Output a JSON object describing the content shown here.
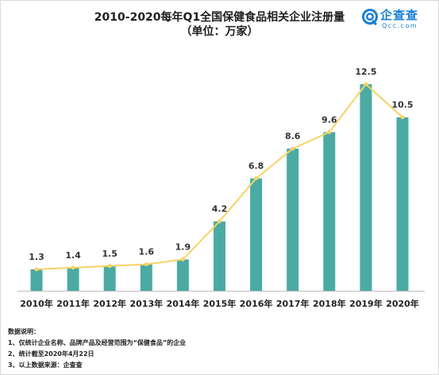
{
  "title_line1": "2010-2020每年Q1全国保健食品相关企业注册量",
  "title_line2": "（单位：万家）",
  "logo": {
    "name": "企查查",
    "sub": "Qcc.com"
  },
  "colors": {
    "bar": "#4aaba3",
    "line": "#f6d365",
    "marker": "#f6d365",
    "axis": "#bfbfbf",
    "text": "#222222"
  },
  "chart_data": {
    "type": "bar",
    "categories": [
      "2010年",
      "2011年",
      "2012年",
      "2013年",
      "2014年",
      "2015年",
      "2016年",
      "2017年",
      "2018年",
      "2019年",
      "2020年"
    ],
    "series": [
      {
        "type": "bar",
        "values": [
          1.3,
          1.4,
          1.5,
          1.6,
          1.9,
          4.2,
          6.8,
          8.6,
          9.6,
          12.5,
          10.5
        ]
      },
      {
        "type": "line",
        "values": [
          1.3,
          1.4,
          1.5,
          1.6,
          1.9,
          4.2,
          6.8,
          8.6,
          9.6,
          12.5,
          10.5
        ]
      }
    ],
    "data_labels": [
      "1.3",
      "1.4",
      "1.5",
      "1.6",
      "1.9",
      "4.2",
      "6.8",
      "8.6",
      "9.6",
      "12.5",
      "10.5"
    ],
    "title": "2010-2020每年Q1全国保健食品相关企业注册量",
    "subtitle": "（单位：万家）",
    "ylim": [
      0,
      12.5
    ],
    "grid": false,
    "legend": "none"
  },
  "notes": {
    "heading": "数据说明：",
    "items": [
      "1、仅统计企业名称、品牌产品及经营范围为“保健食品”的企业",
      "2、统计截至2020年4月22日",
      "3、以上数据来源：企查查"
    ]
  }
}
